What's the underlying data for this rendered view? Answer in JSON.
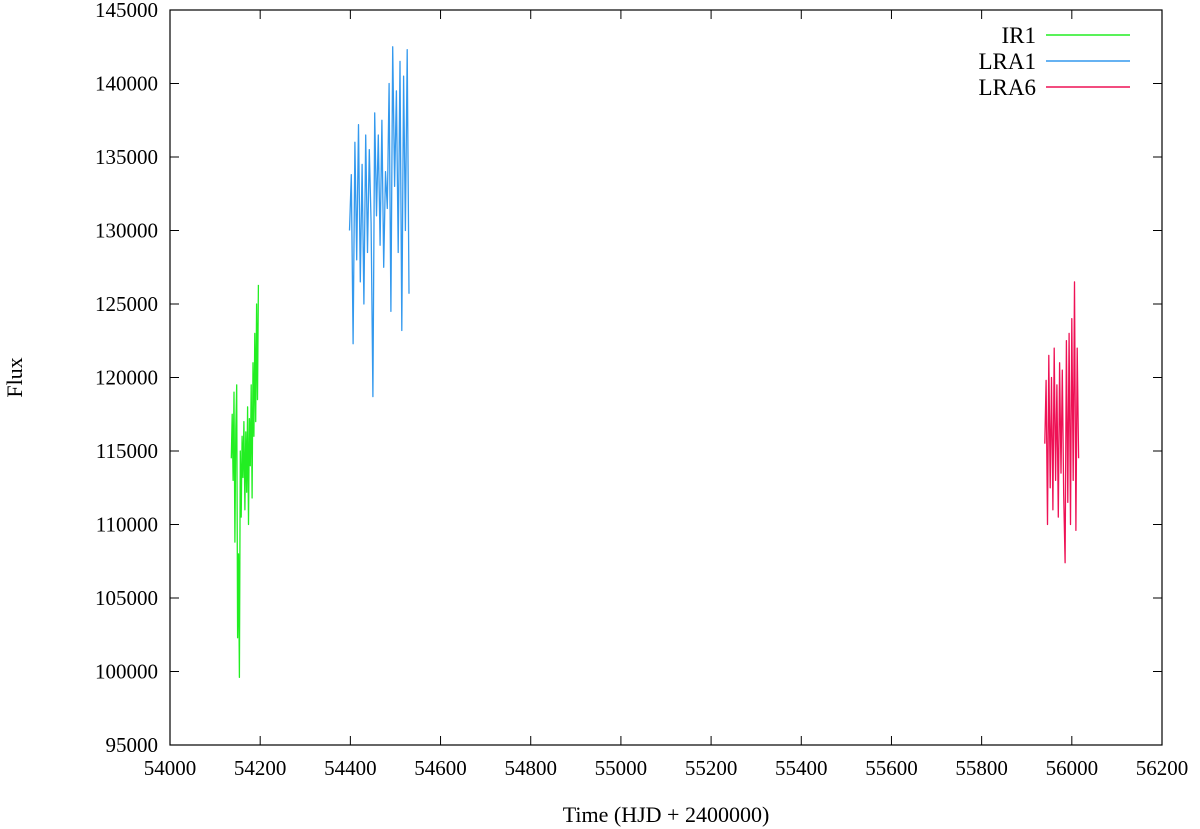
{
  "chart_data": {
    "type": "line",
    "title": "",
    "xlabel": "Time (HJD + 2400000)",
    "ylabel": "Flux",
    "xlim": [
      54000,
      56200
    ],
    "ylim": [
      95000,
      145000
    ],
    "x_ticks": [
      "54000",
      "54200",
      "54400",
      "54600",
      "54800",
      "55000",
      "55200",
      "55400",
      "55600",
      "55800",
      "56000",
      "56200"
    ],
    "y_ticks": [
      "95000",
      "100000",
      "105000",
      "110000",
      "115000",
      "120000",
      "125000",
      "130000",
      "135000",
      "140000",
      "145000"
    ],
    "grid": false,
    "legend_position": "top-right",
    "series": [
      {
        "name": "IR1",
        "color": "#22ee22",
        "x": [
          54136,
          54138,
          54140,
          54142,
          54144,
          54146,
          54148,
          54150,
          54152,
          54154,
          54156,
          54158,
          54160,
          54162,
          54164,
          54166,
          54168,
          54170,
          54172,
          54174,
          54176,
          54178,
          54180,
          54182,
          54184,
          54186,
          54188,
          54190,
          54192,
          54194,
          54196
        ],
        "y": [
          114500,
          117500,
          113000,
          119000,
          108800,
          116500,
          119500,
          102300,
          108000,
          99600,
          115000,
          110500,
          116000,
          113200,
          117000,
          111000,
          116300,
          112200,
          118000,
          110000,
          117200,
          114000,
          119500,
          111800,
          121000,
          116000,
          123000,
          117000,
          125000,
          118500,
          126300
        ]
      },
      {
        "name": "LRA1",
        "color": "#3399ee",
        "x": [
          54398,
          54402,
          54406,
          54410,
          54414,
          54418,
          54422,
          54426,
          54430,
          54434,
          54438,
          54442,
          54446,
          54450,
          54454,
          54458,
          54462,
          54466,
          54470,
          54474,
          54478,
          54482,
          54486,
          54490,
          54494,
          54498,
          54502,
          54506,
          54510,
          54514,
          54518,
          54522,
          54526,
          54530
        ],
        "y": [
          130000,
          133800,
          122300,
          136000,
          128000,
          137200,
          126500,
          134500,
          125000,
          136500,
          128500,
          135500,
          130500,
          118700,
          138000,
          131000,
          136500,
          129000,
          137500,
          127500,
          134000,
          131500,
          140000,
          124500,
          142500,
          133000,
          139500,
          128500,
          141500,
          123200,
          140500,
          130000,
          142300,
          125700
        ]
      },
      {
        "name": "LRA6",
        "color": "#ee1155",
        "x": [
          55940,
          55943,
          55946,
          55949,
          55952,
          55955,
          55958,
          55961,
          55964,
          55967,
          55970,
          55973,
          55976,
          55979,
          55982,
          55985,
          55988,
          55991,
          55994,
          55997,
          56000,
          56003,
          56006,
          56009,
          56012,
          56015
        ],
        "y": [
          115500,
          119800,
          110000,
          121500,
          112500,
          120000,
          111000,
          122000,
          113000,
          119500,
          110500,
          121000,
          113500,
          120500,
          112000,
          107400,
          122500,
          111500,
          123000,
          110000,
          124000,
          113000,
          126500,
          109600,
          122000,
          114500
        ]
      }
    ]
  }
}
